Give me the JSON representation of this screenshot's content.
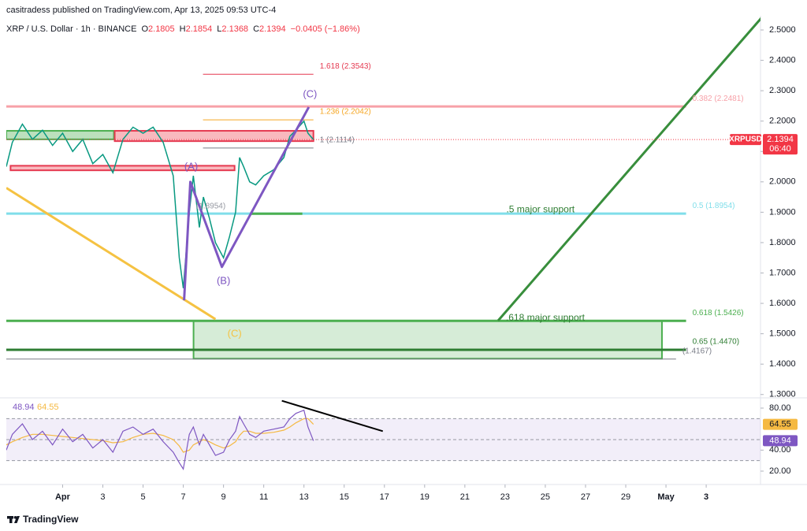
{
  "chart_data": {
    "type": "line",
    "header": "casitradess published on TradingView.com, Apr 13, 2025 09:53 UTC-4",
    "symbol": "XRP / U.S. Dollar · 1h · BINANCE",
    "ohlc": [
      {
        "label": "O",
        "value": 2.1805
      },
      {
        "label": "H",
        "value": 2.1854
      },
      {
        "label": "L",
        "value": 2.1368
      },
      {
        "label": "C",
        "value": 2.1394
      }
    ],
    "change": {
      "value": -0.0405,
      "label": "−0.0405 (−1.86%)"
    },
    "price_tag": {
      "symbol": "XRPUSD",
      "countdown": "06:40"
    },
    "x": [
      -1.8,
      -1.5,
      -1,
      -0.5,
      0,
      0.5,
      1,
      1.5,
      2,
      2.5,
      3,
      3.5,
      4,
      4.5,
      5,
      5.5,
      6,
      6.5,
      6.8,
      7,
      7.3,
      7.5,
      7.8,
      8,
      8.3,
      8.6,
      9,
      9.3,
      9.6,
      9.8,
      10,
      10.3,
      10.6,
      11,
      11.5,
      12,
      12.3,
      12.6,
      13,
      13.2,
      13.47
    ],
    "series": [
      {
        "name": "XRPUSD",
        "color": "#089981",
        "values": [
          2.05,
          2.13,
          2.19,
          2.14,
          2.17,
          2.12,
          2.16,
          2.1,
          2.14,
          2.06,
          2.09,
          2.03,
          2.14,
          2.18,
          2.16,
          2.18,
          2.13,
          2.02,
          1.75,
          1.65,
          1.9,
          2.02,
          1.85,
          1.95,
          1.88,
          1.8,
          1.75,
          1.82,
          1.9,
          2.08,
          2.05,
          2.0,
          1.99,
          2.02,
          2.04,
          2.08,
          2.15,
          2.17,
          2.2,
          2.16,
          2.1394
        ]
      }
    ],
    "xlim": [
      -1.8,
      35.7
    ],
    "xticks": [
      {
        "value": 1,
        "label": "Apr"
      },
      3,
      5,
      7,
      9,
      11,
      13,
      15,
      17,
      19,
      21,
      23,
      25,
      27,
      29,
      {
        "value": 31,
        "label": "May"
      },
      {
        "value": 33,
        "label": "3"
      }
    ],
    "ylim": [
      1.29,
      2.54
    ],
    "yticks": [
      {
        "value": 1.3,
        "label": "1.3000"
      },
      {
        "value": 1.4,
        "label": "1.4000"
      },
      {
        "value": 1.5,
        "label": "1.5000"
      },
      {
        "value": 1.6,
        "label": "1.6000"
      },
      {
        "value": 1.7,
        "label": "1.7000"
      },
      {
        "value": 1.8,
        "label": "1.8000"
      },
      {
        "value": 1.9,
        "label": "1.9000"
      },
      {
        "value": 2.0,
        "label": "2.0000"
      },
      {
        "value": 2.1,
        "label": "2.1000"
      },
      {
        "value": 2.2,
        "label": "2.2000"
      },
      {
        "value": 2.3,
        "label": "2.3000"
      },
      {
        "value": 2.4,
        "label": "2.4000"
      },
      {
        "value": 2.5,
        "label": "2.5000"
      }
    ],
    "fib_levels": [
      {
        "label": "1.618 (2.3543)",
        "value": 2.3543,
        "color": "#e53950",
        "width": 1,
        "x": [
          7.98,
          13.47
        ]
      },
      {
        "label": "1.236 (2.2042)",
        "value": 2.2042,
        "color": "#f5a623",
        "width": 1,
        "x": [
          7.98,
          13.47
        ]
      },
      {
        "label": "1 (2.1114)",
        "value": 2.1114,
        "color": "#787b86",
        "width": 1,
        "x": [
          7.98,
          13.47
        ]
      },
      {
        "label": "0.382 (2.2481)",
        "value": 2.2481,
        "color": "#f7a1a8",
        "width": 3,
        "x": [
          -1.8,
          32
        ]
      },
      {
        "label": "0.5 (1.8954)",
        "value": 1.8954,
        "color": "#80deea",
        "width": 3,
        "x": [
          -1.8,
          32
        ]
      },
      {
        "label": "0.618 (1.5426)",
        "value": 1.5426,
        "color": "#4caf50",
        "width": 3,
        "x": [
          -1.8,
          32
        ]
      },
      {
        "label": "0.65 (1.4470)",
        "value": 1.447,
        "color": "#2e7d32",
        "width": 3,
        "x": [
          -1.8,
          32
        ]
      },
      {
        "label": "(1.4167)",
        "value": 1.4167,
        "color": "#787b86",
        "width": 1,
        "x": [
          -1.8,
          31.5
        ]
      }
    ],
    "zones": [
      {
        "top": 2.168,
        "bottom": 2.14,
        "x": [
          -1.8,
          3.55
        ],
        "fill": "#a5d6a7",
        "stroke": "#4caf50"
      },
      {
        "top": 2.168,
        "bottom": 2.134,
        "x": [
          3.59,
          13.47
        ],
        "fill": "#f7a1a8",
        "stroke": "#e53950"
      },
      {
        "top": 2.053,
        "bottom": 2.038,
        "x": [
          -1.59,
          9.55
        ],
        "fill": "#f7a1a8",
        "stroke": "#e53950"
      },
      {
        "top": 1.5426,
        "bottom": 1.418,
        "x": [
          7.51,
          30.8
        ],
        "fill": "#c8e6c9",
        "stroke": "#4caf50"
      }
    ],
    "trendlines": [
      {
        "color": "#f5c242",
        "width": 3,
        "points": [
          [
            -1.8,
            1.98
          ],
          [
            8.6,
            1.548
          ]
        ]
      },
      {
        "color": "#388e3c",
        "width": 3,
        "points": [
          [
            22.65,
            1.543
          ],
          [
            35.75,
            2.54
          ]
        ]
      },
      {
        "color": "#4caf50",
        "width": 3,
        "points": [
          [
            10.33,
            1.895
          ],
          [
            12.92,
            1.895
          ]
        ]
      },
      {
        "color": "#7e57c2",
        "width": 3,
        "points": [
          [
            7.04,
            1.61
          ],
          [
            7.35,
            2.0
          ],
          [
            8.92,
            1.72
          ],
          [
            13.24,
            2.246
          ]
        ]
      }
    ],
    "annotations": [
      {
        "text": "(A)",
        "x": 7.39,
        "y": 2.049,
        "color": "#7e57c2",
        "size": 13
      },
      {
        "text": "(B)",
        "x": 9.0,
        "y": 1.673,
        "color": "#7e57c2",
        "size": 13
      },
      {
        "text": "(C)",
        "x": 13.3,
        "y": 2.287,
        "color": "#7e57c2",
        "size": 13
      },
      {
        "text": "(C)",
        "x": 9.55,
        "y": 1.499,
        "color": "#f5c242",
        "size": 13
      },
      {
        "text": ".5 major support",
        "x": 24.76,
        "y": 1.908,
        "color": "#2e7d32",
        "size": 12
      },
      {
        "text": ".618 major support",
        "x": 25.0,
        "y": 1.551,
        "color": "#2e7d32",
        "size": 12
      },
      {
        "text": "(1.8954)",
        "x": 8.37,
        "y": 1.919,
        "color": "#9598a1",
        "size": 10
      }
    ],
    "rsi": {
      "color": "#7e57c2",
      "ma_color": "#f5b942",
      "values": [
        40,
        55,
        65,
        50,
        58,
        45,
        60,
        48,
        55,
        42,
        50,
        38,
        58,
        62,
        55,
        60,
        48,
        38,
        28,
        22,
        55,
        62,
        45,
        55,
        45,
        35,
        38,
        50,
        58,
        72,
        65,
        55,
        52,
        58,
        60,
        62,
        70,
        75,
        78,
        62,
        48.94
      ],
      "ma_values": [
        45,
        48,
        52,
        55,
        55,
        54,
        53,
        52,
        51,
        50,
        49,
        47,
        48,
        52,
        55,
        56,
        54,
        50,
        44,
        38,
        40,
        45,
        48,
        50,
        48,
        45,
        42,
        44,
        48,
        54,
        58,
        58,
        56,
        56,
        57,
        59,
        62,
        66,
        70,
        70,
        64.55
      ],
      "ylim": [
        9.5,
        89.75
      ],
      "yticks": [
        {
          "value": 20,
          "label": "20.00"
        },
        {
          "value": 40,
          "label": "40.00"
        },
        {
          "value": 80,
          "label": "80.00"
        }
      ],
      "levels": [
        70,
        50,
        30
      ],
      "trendline": {
        "color": "#000000",
        "points": [
          [
            11.9,
            87
          ],
          [
            16.92,
            58
          ]
        ]
      }
    },
    "footer": "TradingView"
  }
}
